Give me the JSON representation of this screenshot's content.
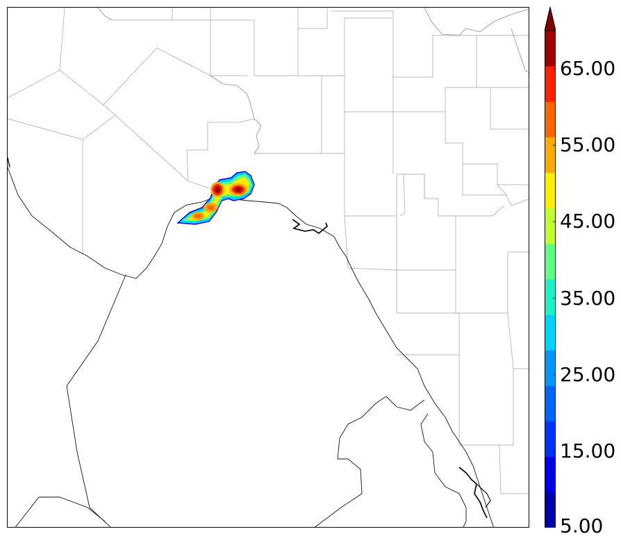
{
  "map": {
    "region": "",
    "border_color": "#000000",
    "county_line_color": "#9a9a9a"
  },
  "colorbar": {
    "min": 5.0,
    "max": 70.0,
    "step": 5.0,
    "extend": "max",
    "colors": [
      "#0000a8",
      "#0000e8",
      "#0032ff",
      "#0064ff",
      "#0096ff",
      "#00d2ff",
      "#20f0c8",
      "#60ff80",
      "#c0ff30",
      "#ffee00",
      "#ffaa00",
      "#ff6600",
      "#ff2200",
      "#a00000"
    ],
    "tick_labels": [
      "5.00",
      "15.00",
      "25.00",
      "35.00",
      "45.00",
      "55.00",
      "65.00"
    ]
  }
}
